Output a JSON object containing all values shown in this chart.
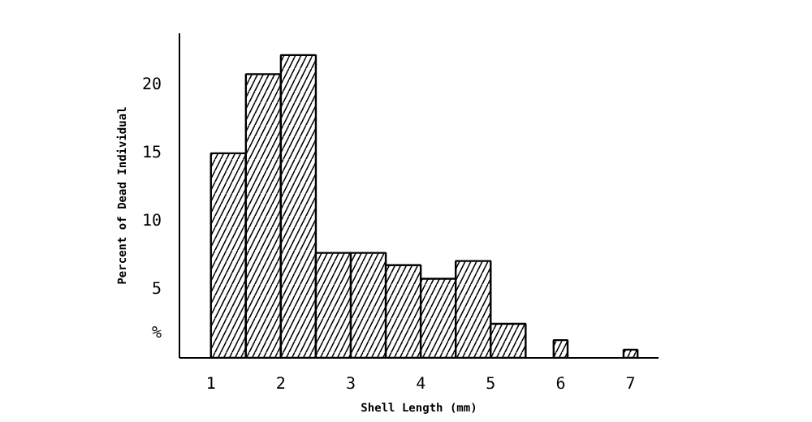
{
  "chart_data": {
    "type": "histogram",
    "xlabel": "Shell Length (mm)",
    "ylabel": "Percent of Dead Individual",
    "bins": [
      1,
      1.5,
      2,
      2.5,
      3,
      3.5,
      4,
      4.5,
      5,
      5.5,
      5.9,
      6.1,
      6.9,
      7.1
    ],
    "values": [
      15,
      20.8,
      22.2,
      7.7,
      7.7,
      6.8,
      5.8,
      7.1,
      2.5,
      0,
      1.3,
      0,
      0.6
    ],
    "color": "#000000",
    "xlim": [
      0.55,
      7.4
    ],
    "ylim": [
      0,
      23.8
    ],
    "xticks": [
      1,
      2,
      3,
      4,
      5,
      6,
      7
    ],
    "yticks": [
      {
        "value": 1.8,
        "label": "%"
      },
      5,
      10,
      15,
      20
    ],
    "grid": false
  }
}
